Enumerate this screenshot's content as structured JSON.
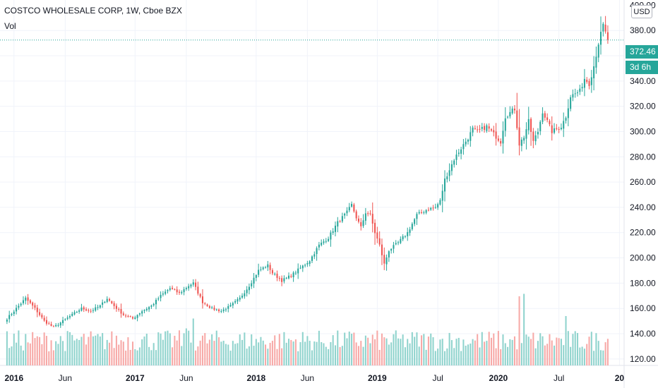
{
  "header": {
    "symbol_title": "COSTCO WHOLESALE CORP, 1W, Cboe BZX",
    "volume_label": "Vol",
    "currency": "USD"
  },
  "price_badge": "372.46",
  "countdown_badge": "3d 6h",
  "colors": {
    "up": "#26a69a",
    "down": "#ef5350",
    "up_volume": "#8fd3cd",
    "down_volume": "#f7a9a7",
    "grid": "#f0f3fa"
  },
  "chart_data": {
    "type": "candlestick",
    "title": "COSTCO WHOLESALE CORP, 1W, Cboe BZX",
    "interval": "1W",
    "y_ticks": [
      "120.00",
      "140.00",
      "160.00",
      "180.00",
      "200.00",
      "220.00",
      "240.00",
      "260.00",
      "280.00",
      "300.00",
      "320.00",
      "340.00",
      "360.00",
      "380.00"
    ],
    "y_top_partial_tick": "400.00",
    "ylim": [
      116,
      403
    ],
    "x_ticks": [
      {
        "label": "2016",
        "index": 3,
        "year": true
      },
      {
        "label": "Jun",
        "index": 25,
        "year": false
      },
      {
        "label": "2017",
        "index": 55,
        "year": true
      },
      {
        "label": "Jun",
        "index": 77,
        "year": false
      },
      {
        "label": "2018",
        "index": 107,
        "year": true
      },
      {
        "label": "Jun",
        "index": 129,
        "year": false
      },
      {
        "label": "2019",
        "index": 159,
        "year": true
      },
      {
        "label": "Jul",
        "index": 185,
        "year": false
      },
      {
        "label": "2020",
        "index": 211,
        "year": true
      },
      {
        "label": "Jul",
        "index": 237,
        "year": false
      },
      {
        "label": "20",
        "index": 263,
        "year": true
      }
    ],
    "x_start_index": -3,
    "x_end_index": 265,
    "last_price": 372.46,
    "anchors": [
      [
        0,
        152
      ],
      [
        4,
        160
      ],
      [
        8,
        168
      ],
      [
        12,
        160
      ],
      [
        16,
        150
      ],
      [
        20,
        145
      ],
      [
        24,
        150
      ],
      [
        28,
        155
      ],
      [
        32,
        160
      ],
      [
        36,
        158
      ],
      [
        40,
        162
      ],
      [
        43,
        168
      ],
      [
        46,
        162
      ],
      [
        50,
        155
      ],
      [
        54,
        152
      ],
      [
        58,
        158
      ],
      [
        62,
        162
      ],
      [
        66,
        170
      ],
      [
        70,
        176
      ],
      [
        74,
        172
      ],
      [
        78,
        178
      ],
      [
        80,
        180
      ],
      [
        84,
        165
      ],
      [
        88,
        160
      ],
      [
        92,
        158
      ],
      [
        96,
        162
      ],
      [
        100,
        168
      ],
      [
        104,
        178
      ],
      [
        108,
        190
      ],
      [
        112,
        194
      ],
      [
        114,
        188
      ],
      [
        118,
        182
      ],
      [
        122,
        186
      ],
      [
        126,
        192
      ],
      [
        130,
        198
      ],
      [
        134,
        210
      ],
      [
        138,
        216
      ],
      [
        142,
        228
      ],
      [
        146,
        236
      ],
      [
        148,
        242
      ],
      [
        150,
        232
      ],
      [
        152,
        224
      ],
      [
        154,
        236
      ],
      [
        156,
        234
      ],
      [
        158,
        220
      ],
      [
        160,
        210
      ],
      [
        162,
        195
      ],
      [
        164,
        206
      ],
      [
        168,
        212
      ],
      [
        172,
        220
      ],
      [
        176,
        234
      ],
      [
        180,
        238
      ],
      [
        184,
        240
      ],
      [
        186,
        245
      ],
      [
        188,
        262
      ],
      [
        192,
        278
      ],
      [
        194,
        284
      ],
      [
        198,
        295
      ],
      [
        200,
        302
      ],
      [
        202,
        300
      ],
      [
        206,
        304
      ],
      [
        210,
        296
      ],
      [
        212,
        292
      ],
      [
        214,
        312
      ],
      [
        218,
        318
      ],
      [
        220,
        290
      ],
      [
        222,
        296
      ],
      [
        224,
        308
      ],
      [
        226,
        292
      ],
      [
        228,
        300
      ],
      [
        230,
        316
      ],
      [
        234,
        300
      ],
      [
        238,
        304
      ],
      [
        240,
        312
      ],
      [
        242,
        328
      ],
      [
        246,
        332
      ],
      [
        248,
        342
      ],
      [
        250,
        338
      ],
      [
        252,
        352
      ],
      [
        254,
        370
      ],
      [
        256,
        384
      ],
      [
        257,
        378
      ],
      [
        258,
        372
      ]
    ],
    "volume_spikes": {
      "77": 150,
      "80": 190,
      "220": 280,
      "222": 290,
      "240": 200
    }
  }
}
